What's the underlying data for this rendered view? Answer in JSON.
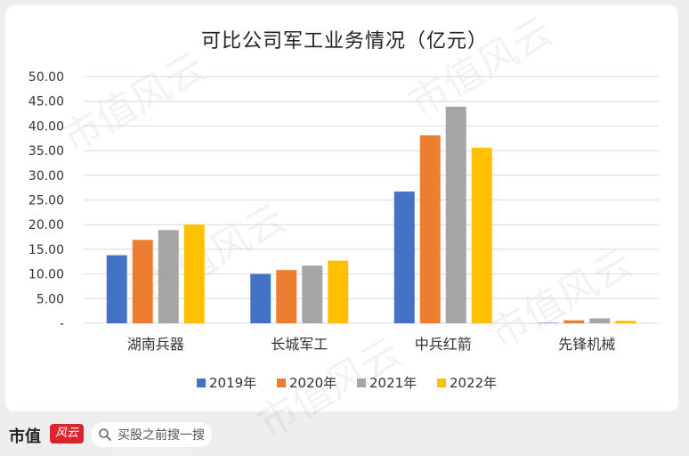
{
  "chart_data": {
    "type": "bar",
    "title": "可比公司军工业务情况（亿元）",
    "categories": [
      "湖南兵器",
      "长城军工",
      "中兵红箭",
      "先锋机械"
    ],
    "series": [
      {
        "name": "2019年",
        "color": "#4472c4",
        "values": [
          13.8,
          10.0,
          26.7,
          0.1
        ]
      },
      {
        "name": "2020年",
        "color": "#ed7d31",
        "values": [
          16.9,
          10.8,
          38.1,
          0.6
        ]
      },
      {
        "name": "2021年",
        "color": "#a5a5a5",
        "values": [
          18.9,
          11.7,
          43.9,
          1.0
        ]
      },
      {
        "name": "2022年",
        "color": "#ffc000",
        "values": [
          20.0,
          12.7,
          35.6,
          0.5
        ]
      }
    ],
    "yticks": [
      "-",
      "5.00",
      "10.00",
      "15.00",
      "20.00",
      "25.00",
      "30.00",
      "35.00",
      "40.00",
      "45.00",
      "50.00"
    ],
    "ylim": [
      0,
      50
    ],
    "grid": true,
    "legend_position": "bottom"
  },
  "watermark": "市值风云",
  "footer": {
    "brand": "市值",
    "logo_text": "风云",
    "search_text": "买股之前搜一搜",
    "search_icon": "search-icon"
  }
}
